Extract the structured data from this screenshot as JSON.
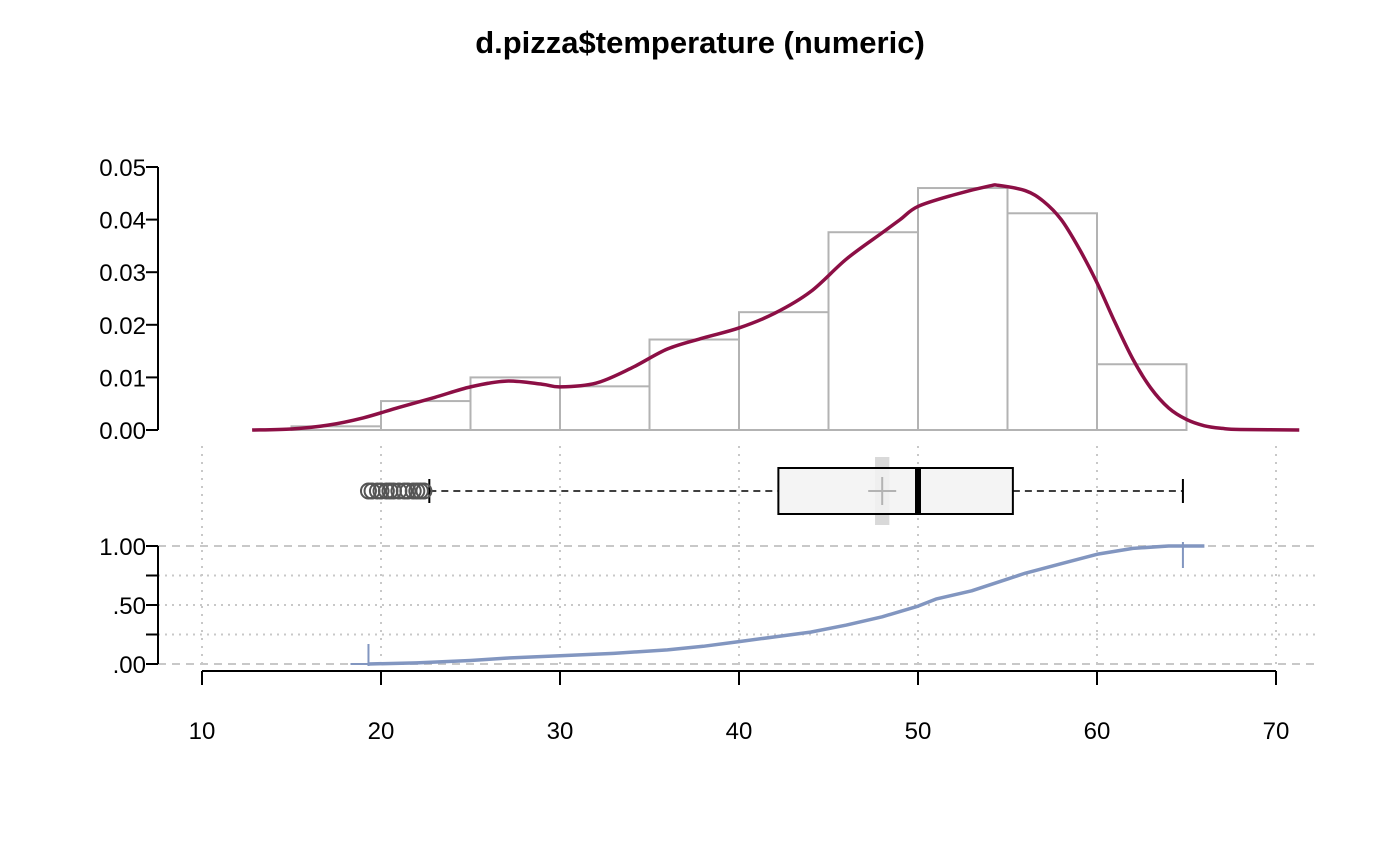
{
  "chart_data": {
    "type": "histogram+boxplot+ecdf",
    "title": "d.pizza$temperature (numeric)",
    "xlabel": "",
    "ylabel": "",
    "x_ticks": [
      10,
      20,
      30,
      40,
      50,
      60,
      70
    ],
    "xlim": [
      10,
      70
    ],
    "colors": {
      "histogram_border": "#b3b3b3",
      "density": "#8c0f45",
      "ecdf": "#8296c0",
      "box_fill": "#f2f2f2",
      "mean_marker": "#b3b3b3",
      "grid": "#c8c8c8"
    },
    "histogram": {
      "ylim": [
        0,
        0.05
      ],
      "y_ticks": [
        "0.00",
        "0.01",
        "0.02",
        "0.03",
        "0.04",
        "0.05"
      ],
      "y_tick_values": [
        0,
        0.01,
        0.02,
        0.03,
        0.04,
        0.05
      ],
      "bins": [
        {
          "from": 15,
          "to": 20,
          "density": 0.0007
        },
        {
          "from": 20,
          "to": 25,
          "density": 0.0055
        },
        {
          "from": 25,
          "to": 30,
          "density": 0.01
        },
        {
          "from": 30,
          "to": 35,
          "density": 0.0083
        },
        {
          "from": 35,
          "to": 40,
          "density": 0.0172
        },
        {
          "from": 40,
          "to": 45,
          "density": 0.0224
        },
        {
          "from": 45,
          "to": 50,
          "density": 0.0376
        },
        {
          "from": 50,
          "to": 55,
          "density": 0.046
        },
        {
          "from": 55,
          "to": 60,
          "density": 0.0412
        },
        {
          "from": 60,
          "to": 65,
          "density": 0.0125
        }
      ],
      "density_curve": {
        "x": [
          12.8,
          15,
          17,
          19,
          21,
          23,
          25,
          27,
          29,
          30,
          32,
          34,
          36,
          38,
          40,
          42,
          44,
          46,
          48,
          49,
          50,
          52,
          54,
          54.5,
          56,
          57,
          58,
          59,
          60,
          61,
          62,
          63,
          64,
          65,
          66,
          67,
          68,
          71.3
        ],
        "y": [
          0,
          0.0002,
          0.0009,
          0.0023,
          0.0043,
          0.0062,
          0.0082,
          0.0093,
          0.0087,
          0.0082,
          0.0089,
          0.0118,
          0.0154,
          0.0175,
          0.0194,
          0.0222,
          0.0263,
          0.0325,
          0.0375,
          0.04,
          0.0425,
          0.0447,
          0.0464,
          0.0465,
          0.0455,
          0.0435,
          0.04,
          0.0345,
          0.028,
          0.0205,
          0.0135,
          0.008,
          0.0042,
          0.002,
          0.0008,
          0.0003,
          0.0001,
          0
        ]
      }
    },
    "boxplot": {
      "whisker_low": 22.7,
      "q1": 42.2,
      "median": 50.0,
      "q3": 55.3,
      "whisker_high": 64.8,
      "mean": 48.0,
      "mean_ci": [
        47.6,
        48.4
      ],
      "outliers": [
        19.3,
        19.5,
        19.8,
        20.0,
        20.3,
        20.5,
        20.7,
        21.0,
        21.3,
        21.5,
        21.8,
        22.0,
        22.2,
        22.4
      ]
    },
    "ecdf": {
      "ylim": [
        0,
        1
      ],
      "y_ticks": [
        ".00",
        ".50",
        "1.00"
      ],
      "y_tick_values": [
        0,
        0.5,
        1
      ],
      "y_minor_ticks": [
        0.25,
        0.75
      ],
      "points": {
        "x": [
          19.3,
          22,
          25,
          27,
          30,
          33,
          36,
          38,
          40,
          42,
          44,
          46,
          48,
          50,
          51,
          53,
          55,
          56,
          58,
          60,
          62,
          64,
          64.8,
          66
        ],
        "y": [
          0,
          0.01,
          0.03,
          0.05,
          0.07,
          0.09,
          0.12,
          0.15,
          0.19,
          0.23,
          0.27,
          0.33,
          0.4,
          0.49,
          0.55,
          0.62,
          0.72,
          0.77,
          0.85,
          0.93,
          0.98,
          1.0,
          1.0,
          1.0
        ]
      },
      "min_marker": 19.3,
      "max_marker": 64.8
    }
  }
}
